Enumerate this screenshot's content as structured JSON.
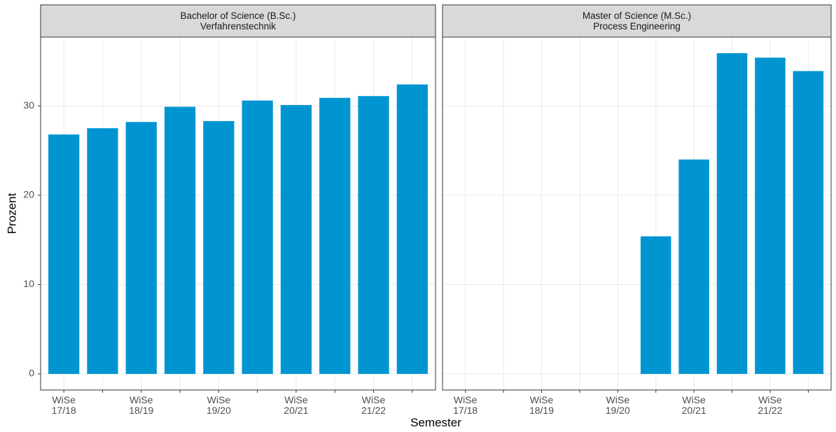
{
  "chart_data": [
    {
      "type": "bar",
      "title": "Bachelor of Science (B.Sc.)\nVerfahrenstechnik",
      "xlabel": "Semester",
      "ylabel": "Prozent",
      "categories": [
        "WiSe\n17/18",
        null,
        "WiSe\n18/19",
        null,
        "WiSe\n19/20",
        null,
        "WiSe\n20/21",
        null,
        "WiSe\n21/22",
        null
      ],
      "values": [
        26.8,
        27.5,
        28.2,
        29.9,
        28.3,
        30.6,
        30.1,
        30.9,
        31.1,
        32.4
      ],
      "color": "#0095d1",
      "ylim": [
        -1.8,
        37.7
      ],
      "yticks": [
        0,
        10,
        20,
        30
      ],
      "grid": true
    },
    {
      "type": "bar",
      "title": "Master of Science (M.Sc.)\nProcess Engineering",
      "categories": [
        "WiSe\n17/18",
        null,
        "WiSe\n18/19",
        null,
        "WiSe\n19/20",
        null,
        "WiSe\n20/21",
        null,
        "WiSe\n21/22",
        null
      ],
      "values": [
        null,
        null,
        null,
        null,
        null,
        15.4,
        24.0,
        35.9,
        35.4,
        33.9
      ],
      "color": "#0095d1",
      "ylim": [
        -1.8,
        37.7
      ],
      "yticks": [
        0,
        10,
        20,
        30
      ],
      "grid": true
    }
  ]
}
